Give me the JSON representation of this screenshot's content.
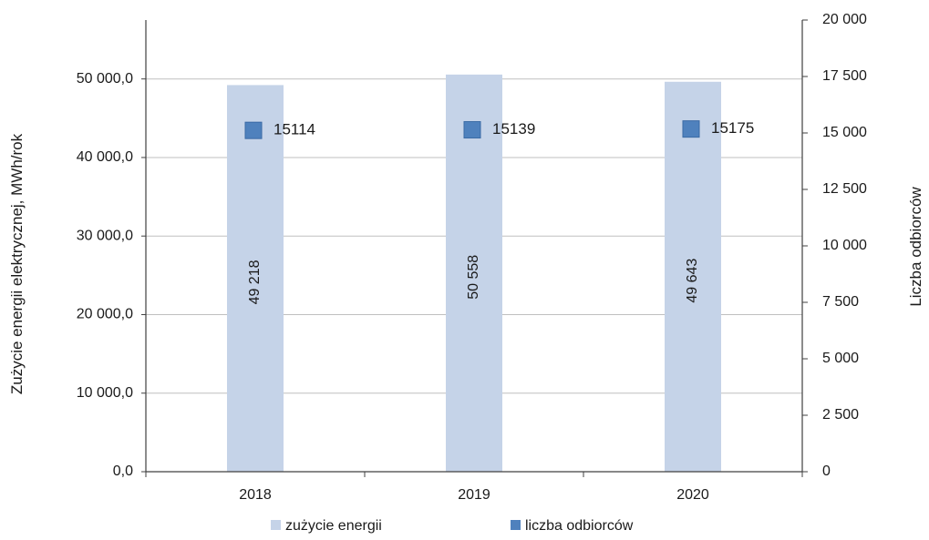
{
  "chart_data": {
    "type": "bar",
    "categories": [
      "2018",
      "2019",
      "2020"
    ],
    "series": [
      {
        "name": "zużycie energii",
        "axis": "left",
        "kind": "bar",
        "values": [
          49218,
          50558,
          49643
        ],
        "labels": [
          "49 218",
          "50 558",
          "49 643"
        ],
        "color": "#c5d3e8"
      },
      {
        "name": "liczba odbiorców",
        "axis": "right",
        "kind": "marker",
        "values": [
          15114,
          15139,
          15175
        ],
        "labels": [
          "15114",
          "15139",
          "15175"
        ],
        "color": "#4f81bd"
      }
    ],
    "ylabel": "Zużycie energii elektrycznej, MWh/rok",
    "y2label": "Liczba odbiorców",
    "ylim": [
      0,
      57500
    ],
    "y2lim": [
      0,
      20000
    ],
    "yticks": [
      0,
      10000,
      20000,
      30000,
      40000,
      50000
    ],
    "yticklabels": [
      "0,0",
      "10 000,0",
      "20 000,0",
      "30 000,0",
      "40 000,0",
      "50 000,0"
    ],
    "y2ticks": [
      0,
      2500,
      5000,
      7500,
      10000,
      12500,
      15000,
      17500,
      20000
    ],
    "y2ticklabels": [
      "0",
      "2 500",
      "5 000",
      "7 500",
      "10 000",
      "12 500",
      "15 000",
      "17 500",
      "20 000"
    ],
    "grid": true,
    "legend_position": "bottom"
  }
}
